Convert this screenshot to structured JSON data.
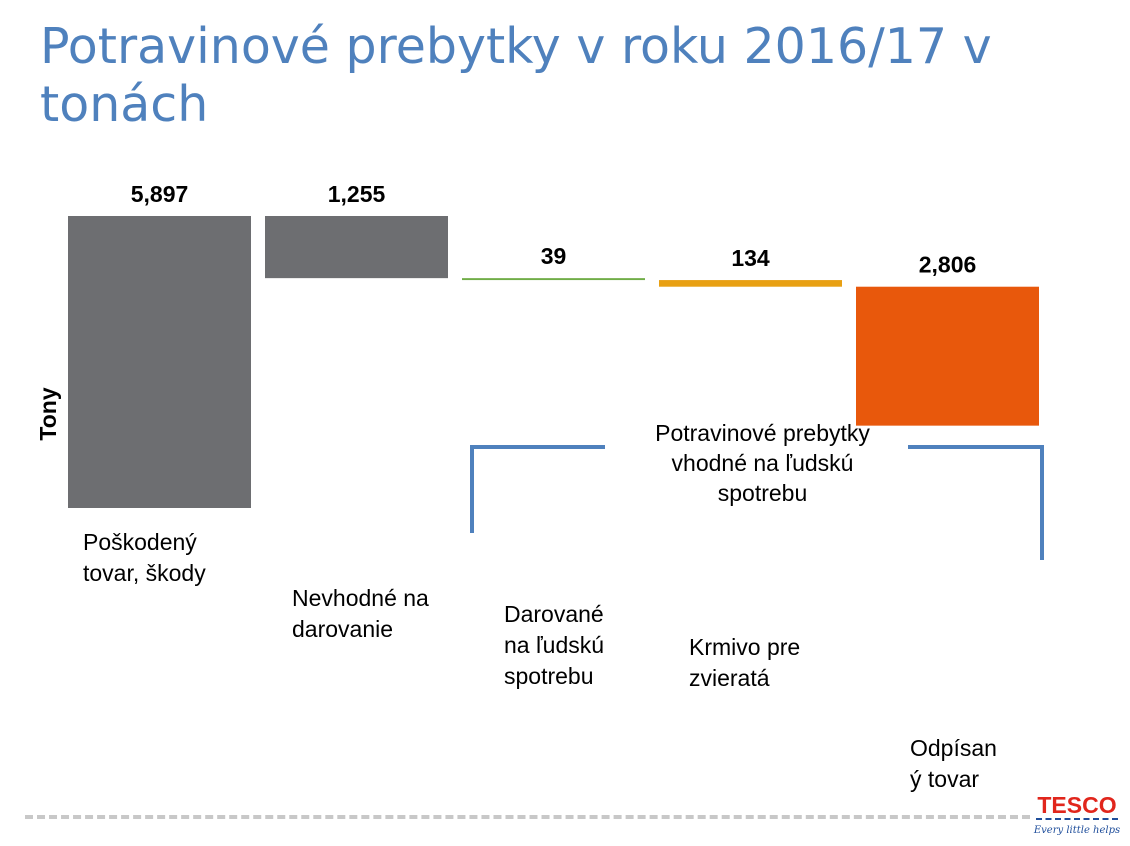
{
  "title": "Potravinové prebytky v roku 2016/17 v tonách",
  "chart_data": {
    "type": "bar",
    "ylabel": "Tony",
    "xlabel": "",
    "categories": [
      "Poškodený\ntovar, škody",
      "Nevhodné na\ndarovanie",
      "Darované\nna ľudskú\nspotrebu",
      "Krmivo pre\nzvieratá",
      "Odpísan\ný tovar"
    ],
    "values": [
      5897,
      1255,
      39,
      134,
      2806
    ],
    "value_labels": [
      "5,897",
      "1,255",
      "39",
      "134",
      "2,806"
    ],
    "colors": [
      "#6d6e71",
      "#6d6e71",
      "#70ad47",
      "#e8a013",
      "#e8580c"
    ],
    "bracket_label": "Potravinové prebytky\nvhodné na ľudskú\nspotrebu",
    "bracket_color": "#4f81bd",
    "grid": false,
    "legend": "none"
  },
  "logo": {
    "text": "TESCO",
    "tagline": "Every little helps"
  }
}
